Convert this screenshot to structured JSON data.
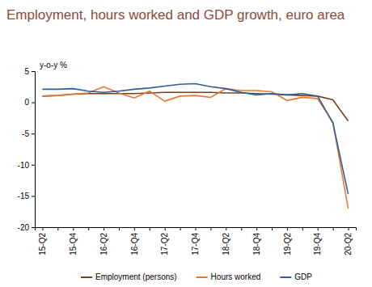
{
  "chart_data": {
    "type": "line",
    "title": "Employment, hours worked and GDP growth, euro area",
    "y_label": "y-o-y %",
    "categories": [
      "15-Q2",
      null,
      "15-Q4",
      null,
      "16-Q2",
      null,
      "16-Q4",
      null,
      "17-Q2",
      null,
      "17-Q4",
      null,
      "18-Q2",
      null,
      "18-Q4",
      null,
      "19-Q2",
      null,
      "19-Q4",
      null,
      "20-Q2"
    ],
    "series": [
      {
        "name": "Employment (persons)",
        "color": "#7b3f1e",
        "values": [
          1.0,
          1.1,
          1.3,
          1.4,
          1.4,
          1.4,
          1.4,
          1.5,
          1.6,
          1.6,
          1.6,
          1.6,
          1.5,
          1.5,
          1.4,
          1.3,
          1.2,
          1.1,
          1.0,
          0.4,
          -3.0
        ]
      },
      {
        "name": "Hours worked",
        "color": "#e8772e",
        "values": [
          1.0,
          1.1,
          1.3,
          1.5,
          2.5,
          1.5,
          0.7,
          1.8,
          0.2,
          1.0,
          1.1,
          0.8,
          2.2,
          1.9,
          1.9,
          1.7,
          0.3,
          0.8,
          0.6,
          -3.2,
          -17.0
        ]
      },
      {
        "name": "GDP",
        "color": "#2e5c9a",
        "values": [
          2.1,
          2.1,
          2.2,
          1.8,
          1.6,
          1.8,
          2.1,
          2.3,
          2.6,
          2.9,
          3.0,
          2.5,
          2.2,
          1.6,
          1.2,
          1.4,
          1.2,
          1.4,
          1.0,
          -3.3,
          -14.7
        ]
      }
    ],
    "ylim": [
      -20,
      5
    ],
    "yticks": [
      -20,
      -15,
      -10,
      -5,
      0,
      5
    ],
    "grid": false,
    "legend": "bottom"
  }
}
